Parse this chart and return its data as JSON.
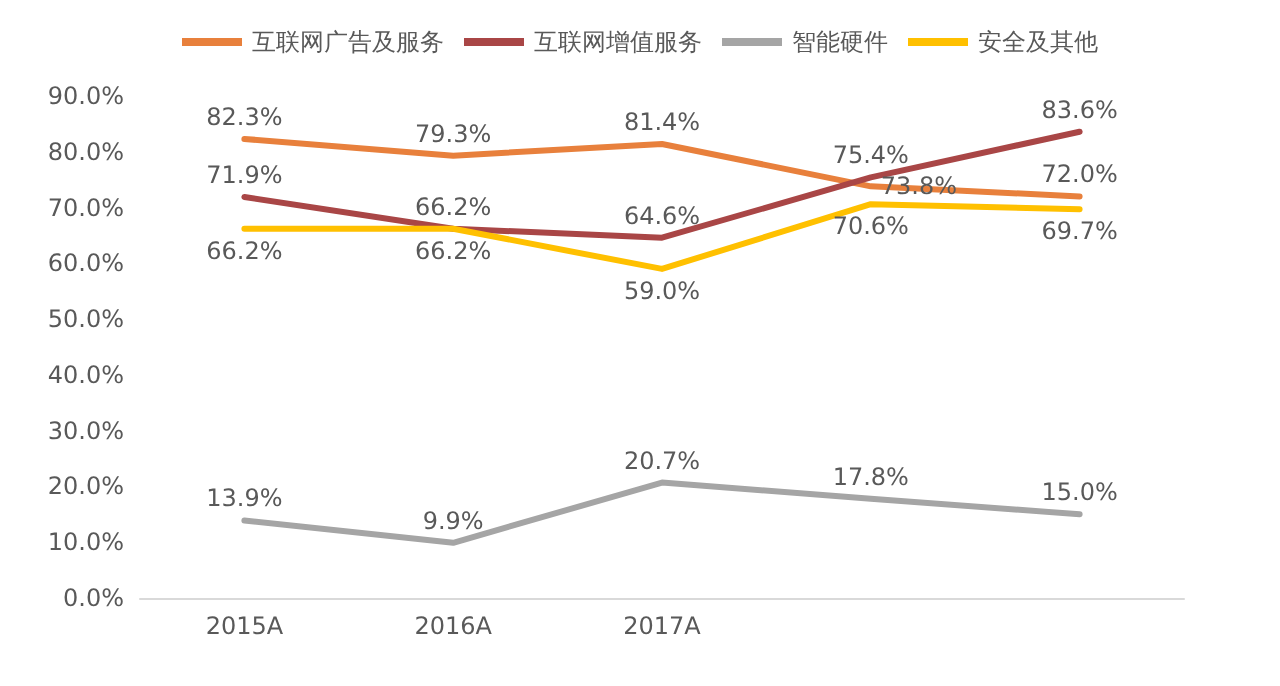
{
  "chart_data": {
    "type": "line",
    "categories": [
      "2015A",
      "2016A",
      "2017A",
      null,
      null
    ],
    "ylim": [
      0,
      90
    ],
    "yticks": [
      {
        "value": 0,
        "label": "0.0%"
      },
      {
        "value": 10,
        "label": "10.0%"
      },
      {
        "value": 20,
        "label": "20.0%"
      },
      {
        "value": 30,
        "label": "30.0%"
      },
      {
        "value": 40,
        "label": "40.0%"
      },
      {
        "value": 50,
        "label": "50.0%"
      },
      {
        "value": 60,
        "label": "60.0%"
      },
      {
        "value": 70,
        "label": "70.0%"
      },
      {
        "value": 80,
        "label": "80.0%"
      },
      {
        "value": 90,
        "label": "90.0%"
      }
    ],
    "grid": false,
    "legend": "top",
    "marker": "none",
    "line_style": "solid",
    "series": [
      {
        "name": "互联网广告及服务",
        "color": "#e8803c",
        "values": [
          82.3,
          79.3,
          81.4,
          73.8,
          72.0
        ],
        "value_labels": [
          "82.3%",
          "79.3%",
          "81.4%",
          "73.8%",
          "72.0%"
        ]
      },
      {
        "name": "互联网增值服务",
        "color": "#a94646",
        "values": [
          71.9,
          66.2,
          64.6,
          75.4,
          83.6
        ],
        "value_labels": [
          "71.9%",
          "66.2%",
          "64.6%",
          "75.4%",
          "83.6%"
        ]
      },
      {
        "name": "智能硬件",
        "color": "#a5a5a5",
        "values": [
          13.9,
          9.9,
          20.7,
          17.8,
          15.0
        ],
        "value_labels": [
          "13.9%",
          "9.9%",
          "20.7%",
          "17.8%",
          "15.0%"
        ]
      },
      {
        "name": "安全及其他",
        "color": "#ffc000",
        "values": [
          66.2,
          66.2,
          59.0,
          70.6,
          69.7
        ],
        "value_labels": [
          "66.2%",
          "66.2%",
          "59.0%",
          "70.6%",
          "69.7%"
        ]
      }
    ]
  }
}
